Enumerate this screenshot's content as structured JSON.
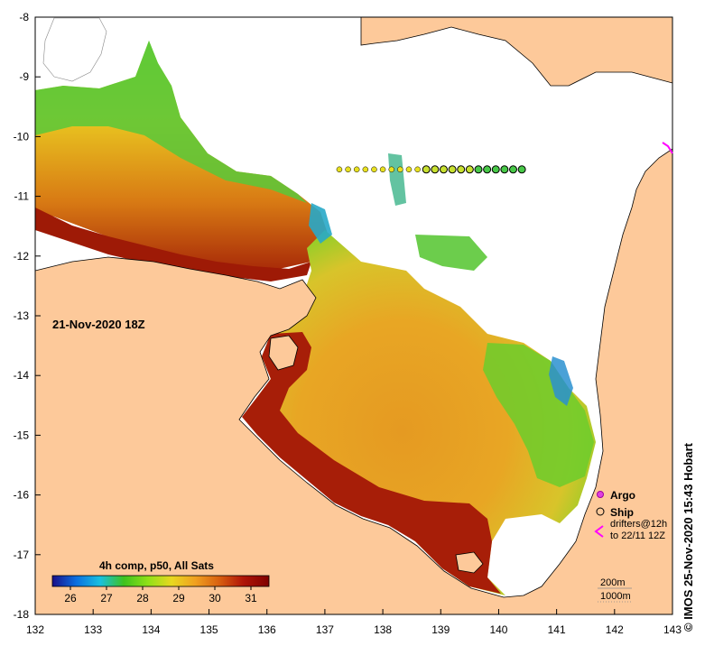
{
  "map": {
    "lon_ticks": [
      "132",
      "133",
      "134",
      "135",
      "136",
      "137",
      "138",
      "139",
      "140",
      "141",
      "142",
      "143"
    ],
    "lat_ticks": [
      "-8",
      "-9",
      "-10",
      "-11",
      "-12",
      "-13",
      "-14",
      "-15",
      "-16",
      "-17",
      "-18"
    ],
    "lon_range": [
      132,
      143
    ],
    "lat_range": [
      -18,
      -8
    ],
    "land_color": "#fdc99a",
    "no_data_color": "#ffffff"
  },
  "timestamp_label": "21-Nov-2020 18Z",
  "colorbar": {
    "title": "4h comp, p50, All Sats",
    "ticks": [
      "26",
      "27",
      "28",
      "29",
      "30",
      "31"
    ],
    "range": [
      25.5,
      31.5
    ],
    "stops": [
      "#1a0f8a",
      "#0b6fe0",
      "#18c0e0",
      "#3ec21e",
      "#8fe018",
      "#e8d820",
      "#f0a020",
      "#d86010",
      "#b01508",
      "#800000"
    ]
  },
  "legend": {
    "argo_label": "Argo",
    "ship_label": "Ship",
    "drifters_line1": "drifters@12h",
    "drifters_line2": "to 22/11 12Z",
    "argo_color": "#e040e0",
    "drifter_color": "#ff00ff"
  },
  "depth_labels": {
    "d200": "200m",
    "d1000": "1000m"
  },
  "credit": "© IMOS 25-Nov-2020 15:43 Hobart",
  "ship_track": {
    "lat": -10.55,
    "lon": [
      137.25,
      137.4,
      137.55,
      137.7,
      137.85,
      138.0,
      138.15,
      138.3,
      138.45,
      138.6,
      138.75,
      138.9,
      139.05,
      139.2,
      139.35,
      139.5,
      139.65,
      139.8,
      139.95,
      140.1,
      140.25,
      140.4
    ]
  }
}
